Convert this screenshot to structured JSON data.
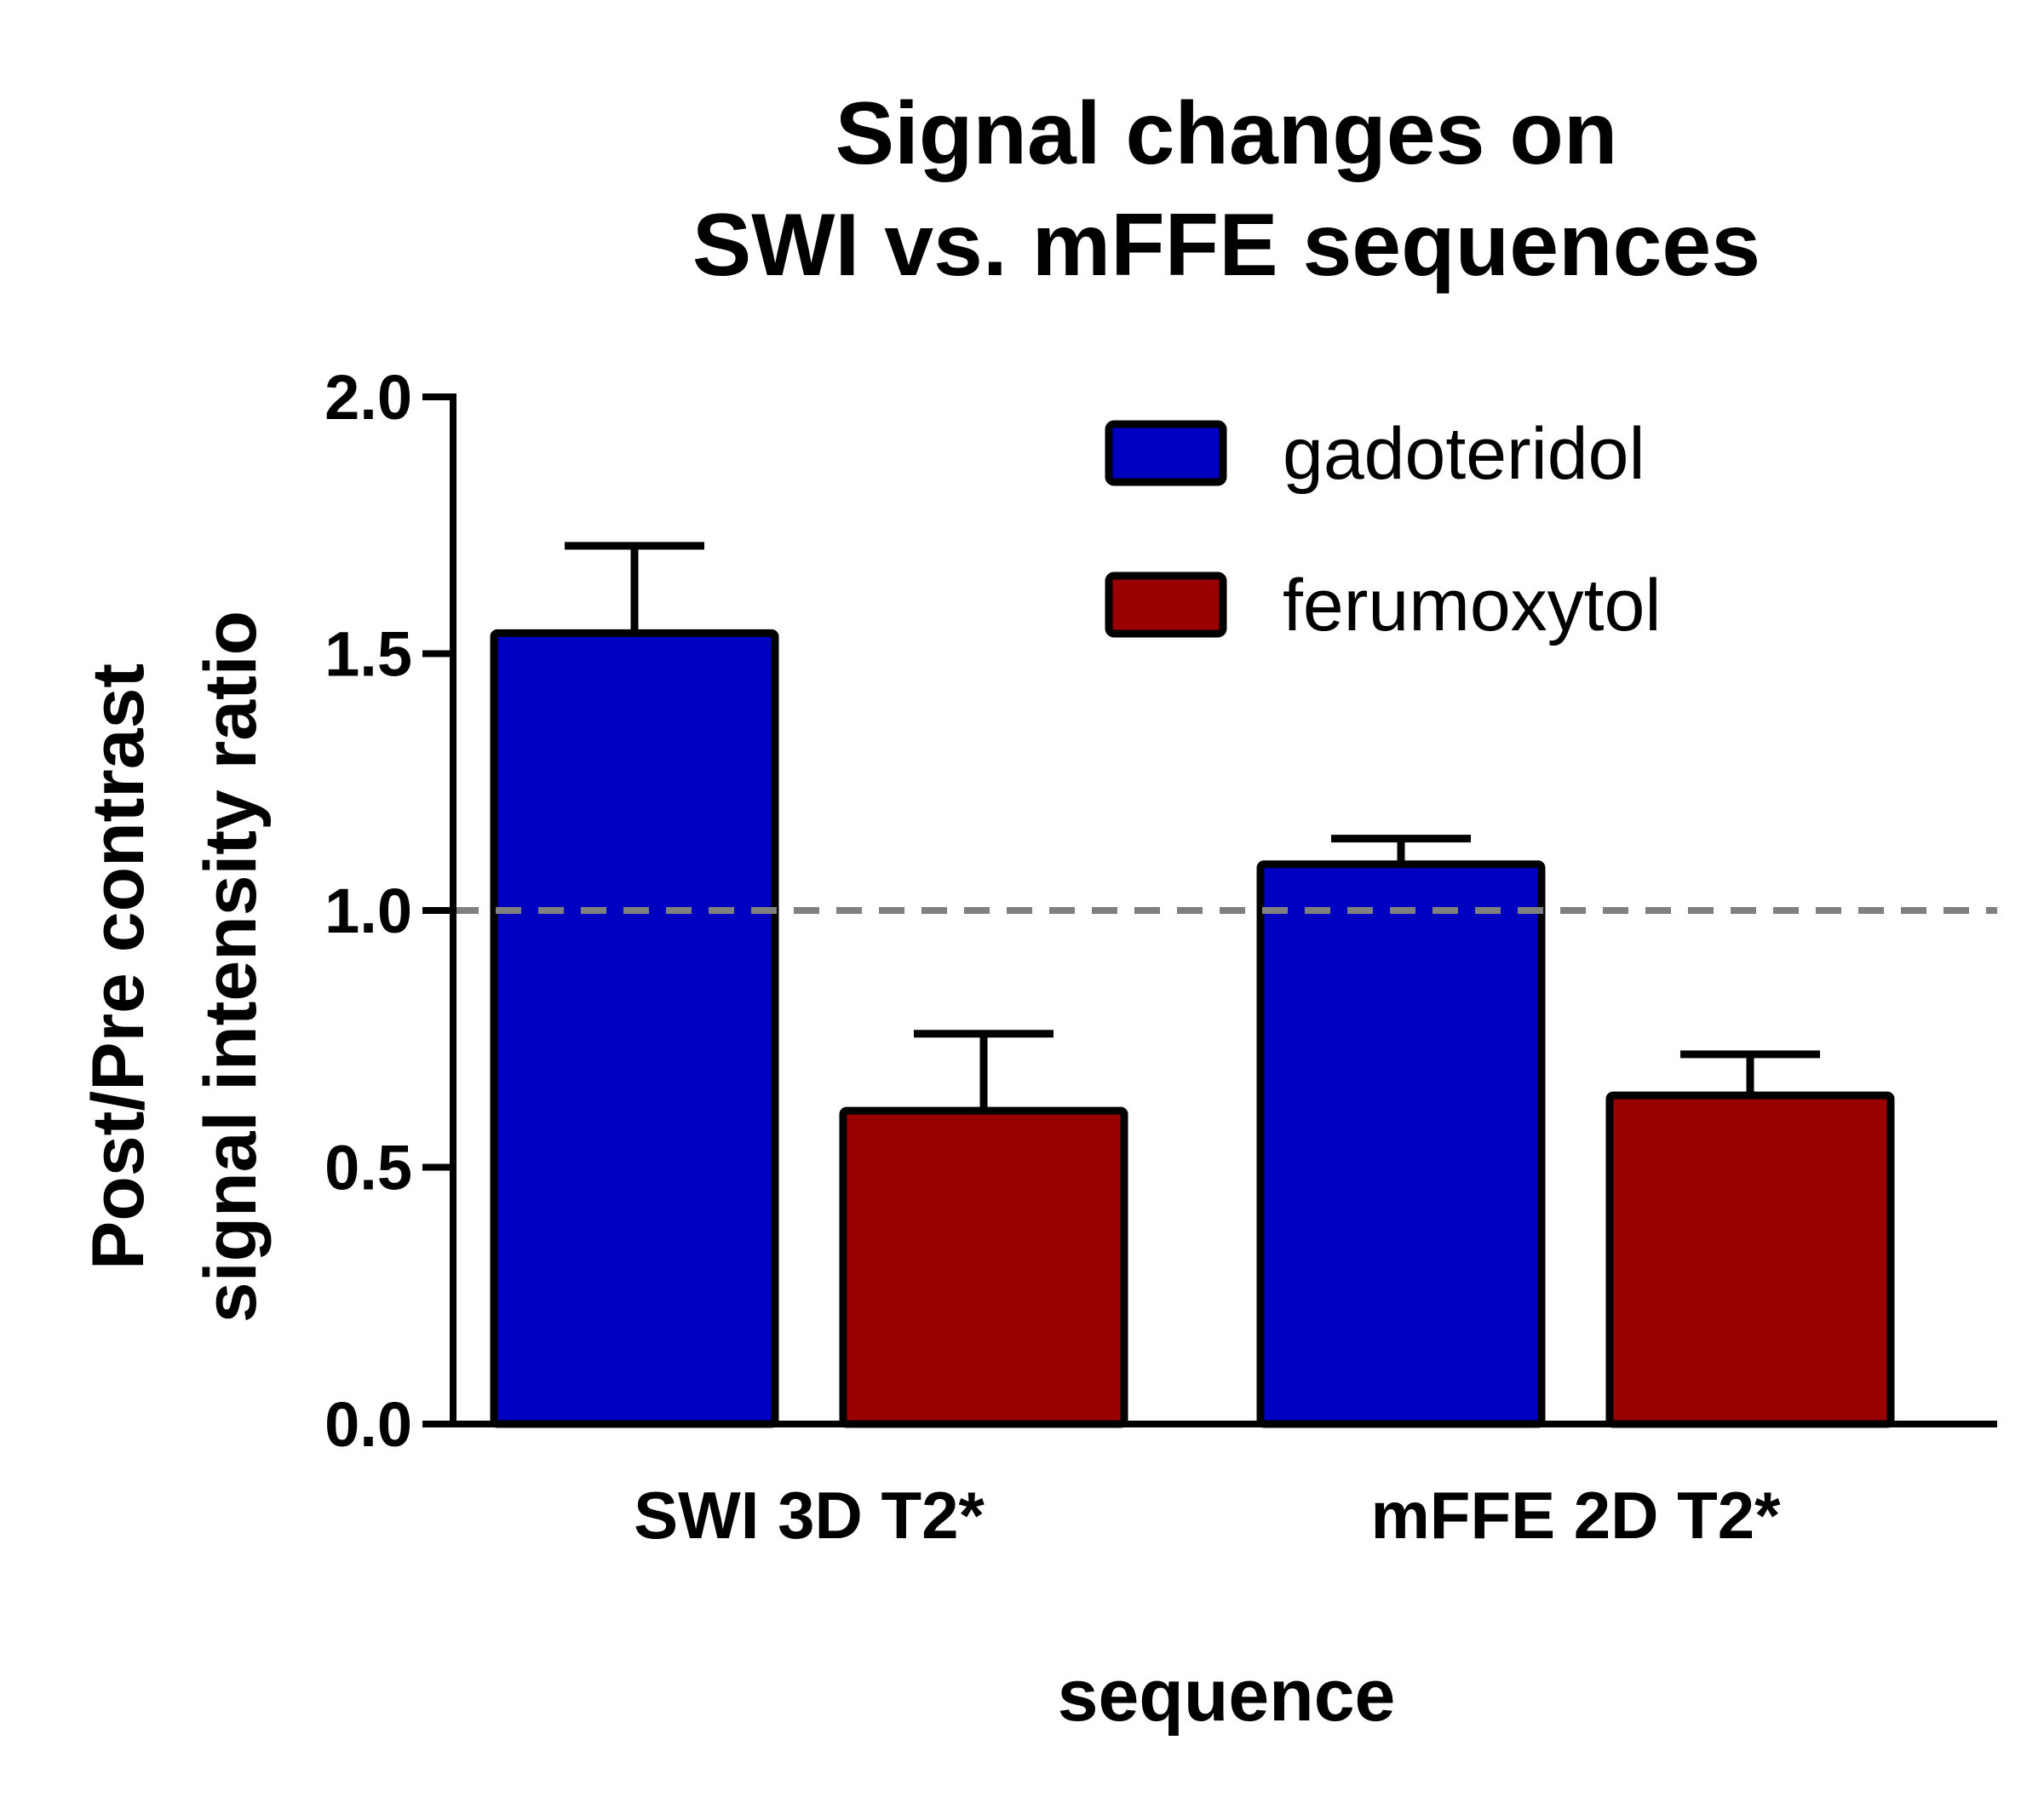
{
  "chart_data": {
    "type": "bar",
    "title_lines": [
      "Signal changes on",
      "SWI vs. mFFE sequences"
    ],
    "xlabel": "sequence",
    "ylabel_lines": [
      "Post/Pre contrast",
      "signal intensity ratio"
    ],
    "categories": [
      "SWI 3D T2*",
      "mFFE 2D T2*"
    ],
    "series": [
      {
        "name": "gadoteridol",
        "color": "#0000c0",
        "values": [
          1.54,
          1.09
        ],
        "error_upper": [
          0.17,
          0.05
        ]
      },
      {
        "name": "ferumoxytol",
        "color": "#9b0000",
        "values": [
          0.61,
          0.64
        ],
        "error_upper": [
          0.15,
          0.08
        ]
      }
    ],
    "ylim": [
      0.0,
      2.0
    ],
    "yticks": [
      0.0,
      0.5,
      1.0,
      1.5,
      2.0
    ],
    "ytick_labels": [
      "0.0",
      "0.5",
      "1.0",
      "1.5",
      "2.0"
    ],
    "reference_line": {
      "y": 1.0,
      "style": "dashed",
      "color": "#808080"
    },
    "grid": false,
    "legend_position": "top-right"
  }
}
